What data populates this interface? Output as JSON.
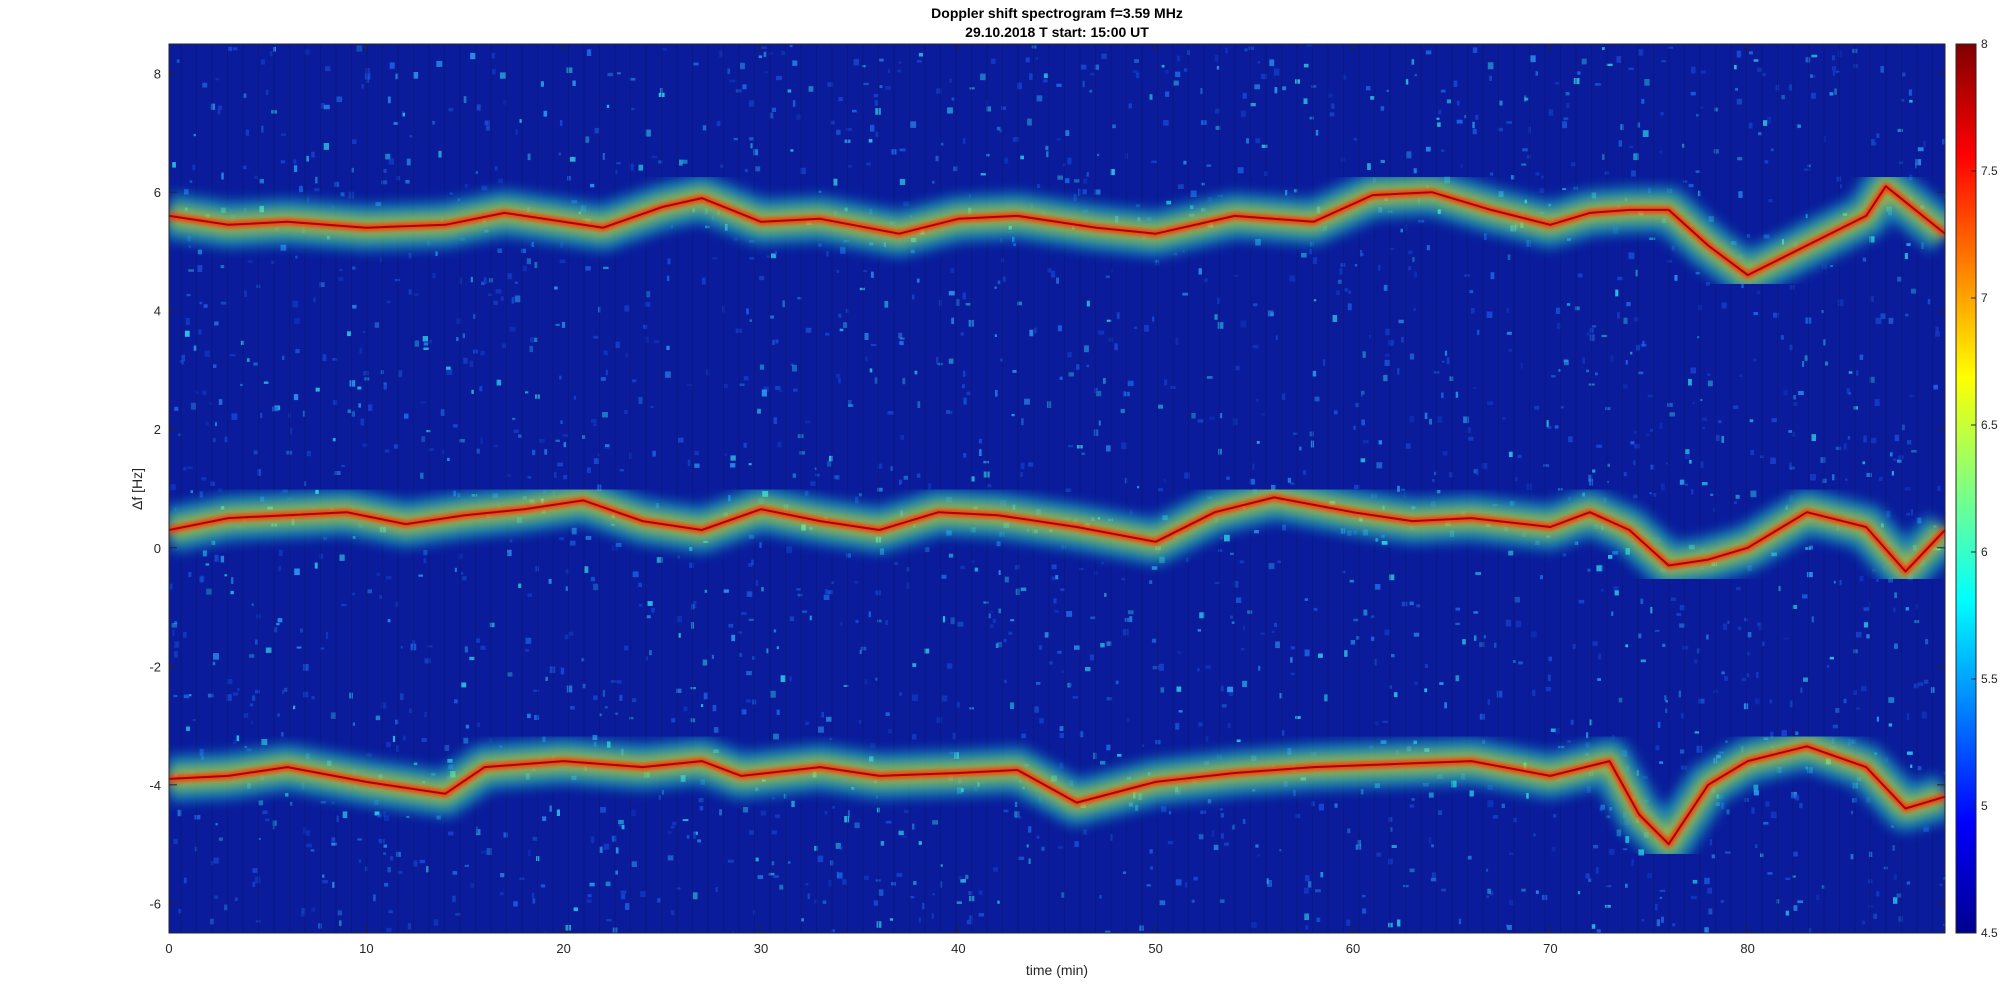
{
  "chart_data": {
    "type": "heatmap",
    "title": "Doppler shift spectrogram f=3.59 MHz",
    "subtitle": "29.10.2018   T start: 15:00 UT",
    "xlabel": "time (min)",
    "ylabel": "Δf [Hz]",
    "xlim": [
      0,
      90
    ],
    "ylim": [
      -6.5,
      8.5
    ],
    "x_ticks": [
      0,
      10,
      20,
      30,
      40,
      50,
      60,
      70,
      80
    ],
    "y_ticks": [
      -6,
      -4,
      -2,
      0,
      2,
      4,
      6,
      8
    ],
    "colorbar": {
      "colormap": "jet",
      "range": [
        4.5,
        8
      ],
      "ticks": [
        "4.5",
        "5",
        "5.5",
        "6",
        "6.5",
        "7",
        "7.5",
        "8"
      ]
    },
    "colors": {
      "background": "#0a1c9c",
      "trace_peak": "#b00000",
      "trace_core": "#ff3000",
      "trace_halo": "#ffe000",
      "trace_edge": "#20ffd0"
    },
    "traces": [
      {
        "t": [
          0,
          3,
          6,
          10,
          14,
          17,
          20,
          22,
          25,
          27,
          30,
          33,
          37,
          40,
          43,
          47,
          50,
          54,
          58,
          61,
          64,
          67,
          70,
          72,
          74,
          76,
          78,
          80,
          83,
          86,
          87,
          90
        ],
        "f": [
          5.6,
          5.45,
          5.5,
          5.4,
          5.45,
          5.65,
          5.5,
          5.4,
          5.75,
          5.9,
          5.5,
          5.55,
          5.3,
          5.55,
          5.6,
          5.4,
          5.3,
          5.6,
          5.5,
          5.95,
          6.0,
          5.7,
          5.45,
          5.65,
          5.7,
          5.7,
          5.1,
          4.6,
          5.1,
          5.6,
          6.1,
          5.3
        ]
      },
      {
        "t": [
          0,
          3,
          6,
          9,
          12,
          15,
          18,
          21,
          24,
          27,
          30,
          33,
          36,
          39,
          42,
          46,
          50,
          53,
          56,
          60,
          63,
          66,
          70,
          72,
          74,
          76,
          78,
          80,
          83,
          86,
          88,
          90
        ],
        "f": [
          0.3,
          0.5,
          0.55,
          0.6,
          0.4,
          0.55,
          0.65,
          0.8,
          0.45,
          0.3,
          0.65,
          0.45,
          0.3,
          0.6,
          0.55,
          0.35,
          0.1,
          0.6,
          0.85,
          0.6,
          0.45,
          0.5,
          0.35,
          0.6,
          0.3,
          -0.3,
          -0.2,
          0.0,
          0.6,
          0.35,
          -0.4,
          0.3
        ]
      },
      {
        "t": [
          0,
          3,
          6,
          10,
          14,
          16,
          20,
          24,
          27,
          29,
          33,
          36,
          40,
          43,
          46,
          50,
          54,
          58,
          62,
          66,
          70,
          73,
          74.5,
          76,
          78,
          80,
          83,
          86,
          88,
          90
        ],
        "f": [
          -3.9,
          -3.85,
          -3.7,
          -3.95,
          -4.15,
          -3.7,
          -3.6,
          -3.7,
          -3.6,
          -3.85,
          -3.7,
          -3.85,
          -3.8,
          -3.75,
          -4.3,
          -3.95,
          -3.8,
          -3.7,
          -3.65,
          -3.6,
          -3.85,
          -3.6,
          -4.5,
          -5.0,
          -4.0,
          -3.6,
          -3.35,
          -3.7,
          -4.4,
          -4.2
        ]
      }
    ]
  }
}
